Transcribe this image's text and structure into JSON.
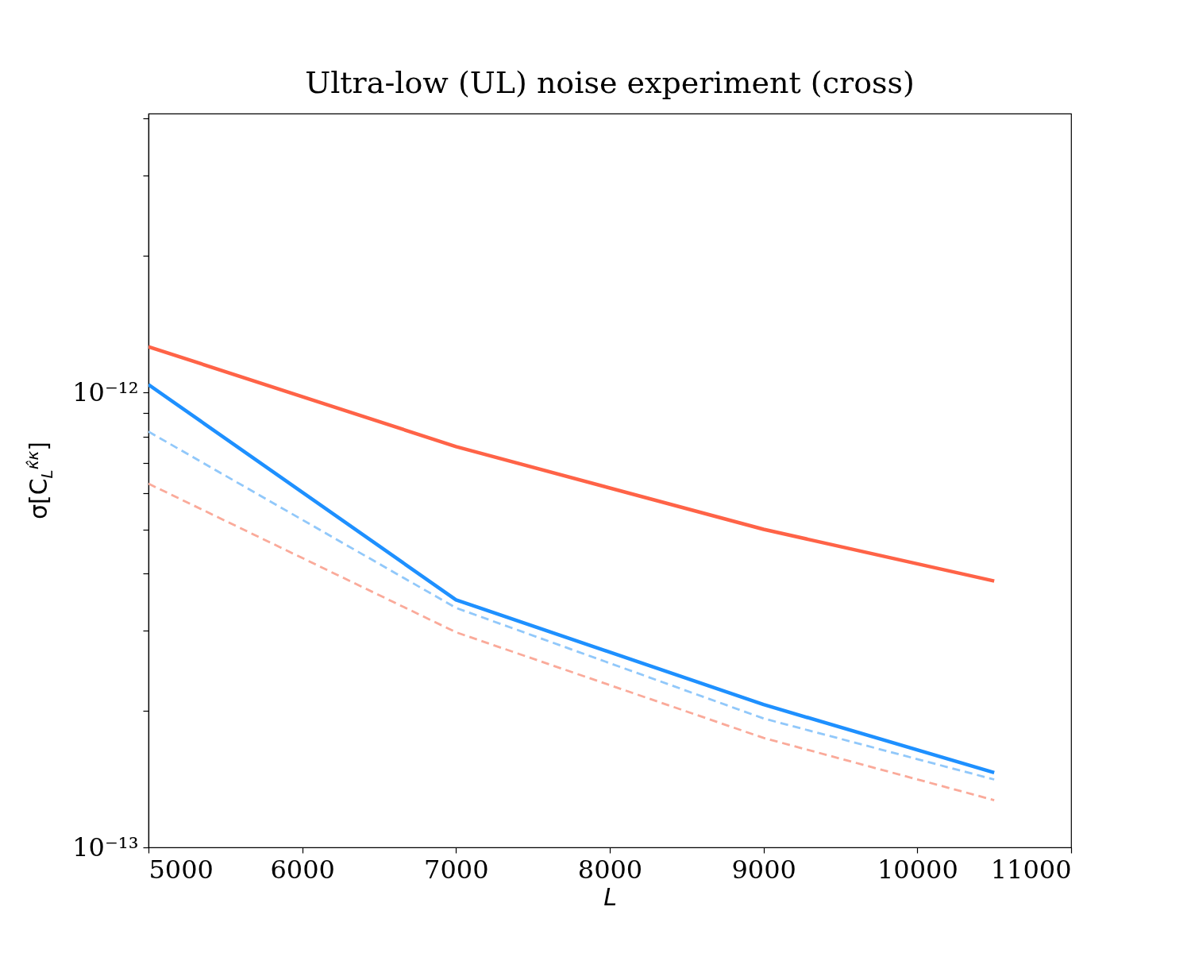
{
  "chart_data": {
    "type": "line",
    "title": "Ultra-low (UL) noise experiment (cross)",
    "xlabel": "L",
    "ylabel": "σ[C$_{L}$$^{κ̂κ}$]",
    "x": [
      5000,
      7000,
      9000,
      10500
    ],
    "series": [
      {
        "color": "#ff6347",
        "line_style": "solid",
        "values": [
          1.26e-12,
          7.6e-13,
          5e-13,
          3.85e-13
        ]
      },
      {
        "color": "#1e90ff",
        "line_style": "solid",
        "values": [
          1.04e-12,
          3.5e-13,
          2.06e-13,
          1.46e-13
        ]
      },
      {
        "color": "#91c8fa",
        "line_style": "dashed",
        "values": [
          8.2e-13,
          3.36e-13,
          1.92e-13,
          1.41e-13
        ]
      },
      {
        "color": "#faaa9a",
        "line_style": "dashed",
        "values": [
          6.3e-13,
          2.97e-13,
          1.74e-13,
          1.27e-13
        ]
      }
    ],
    "log": "y",
    "xlim": [
      5000,
      11000
    ],
    "ylim": [
      1e-13,
      4.1e-12
    ],
    "xticks": [
      5000,
      6000,
      7000,
      8000,
      9000,
      10000,
      11000
    ],
    "yticks": [
      {
        "value": 1e-13,
        "label": "10⁻¹³"
      },
      {
        "value": 2e-13,
        "label": null
      },
      {
        "value": 3e-13,
        "label": null
      },
      {
        "value": 4e-13,
        "label": null
      },
      {
        "value": 5e-13,
        "label": null
      },
      {
        "value": 6e-13,
        "label": null
      },
      {
        "value": 7e-13,
        "label": null
      },
      {
        "value": 8e-13,
        "label": null
      },
      {
        "value": 9e-13,
        "label": null
      },
      {
        "value": 1e-12,
        "label": "10⁻¹²"
      },
      {
        "value": 2e-12,
        "label": null
      },
      {
        "value": 3e-12,
        "label": null
      },
      {
        "value": 4e-12,
        "label": null
      }
    ],
    "grid": false
  }
}
